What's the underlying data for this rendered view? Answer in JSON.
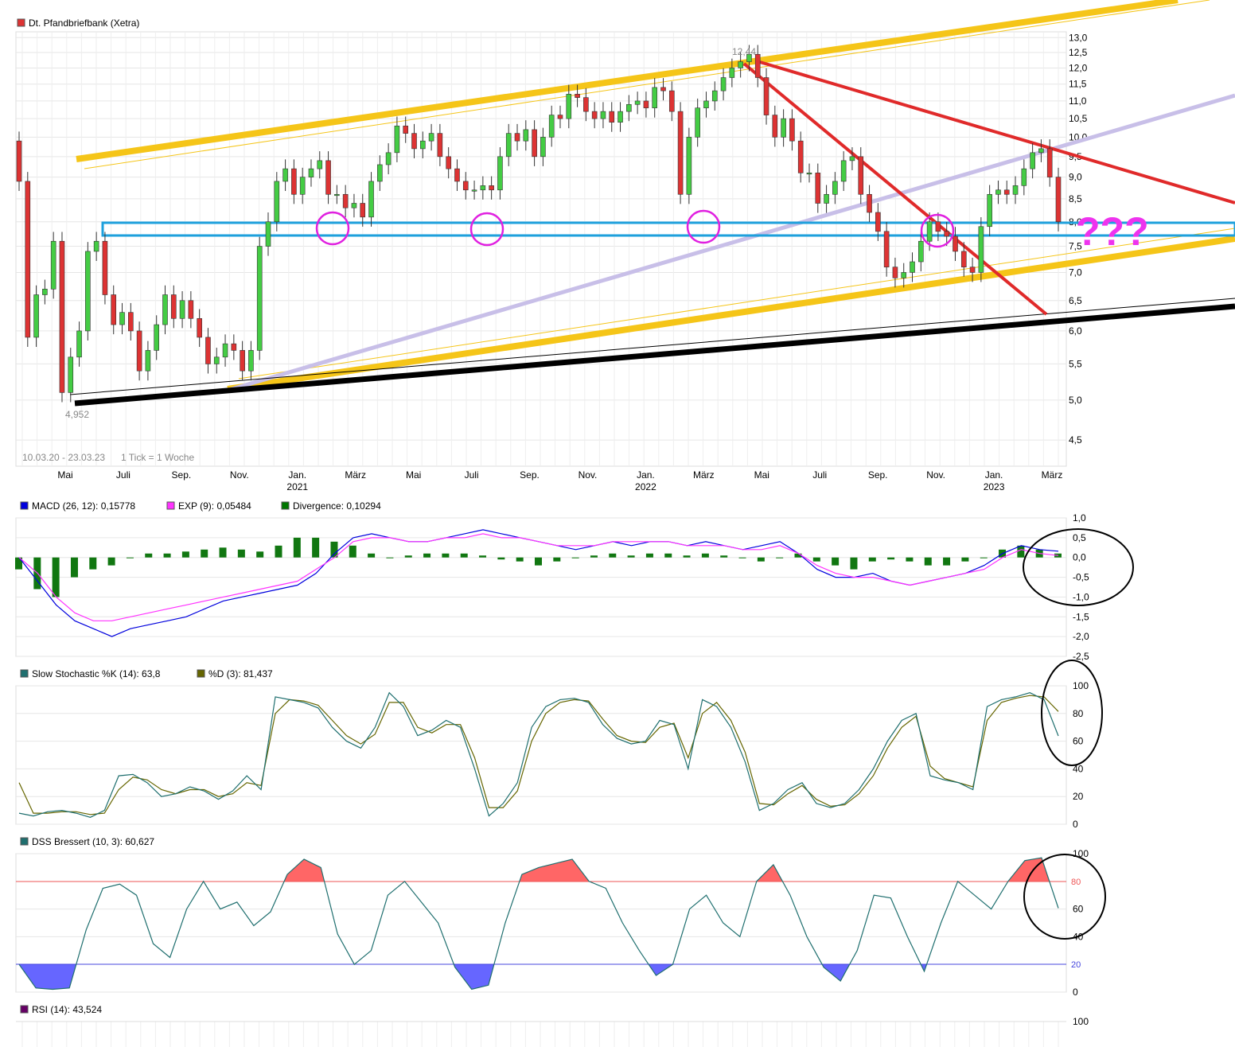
{
  "panels": {
    "price": {
      "legend": "Dt. Pfandbriefbank (Xetra)",
      "legend_color": "#dd3333",
      "range_note": "10.03.20 - 23.03.23",
      "tick_note": "1 Tick = 1 Woche",
      "high_label": "12,44",
      "low_label": "4,952",
      "question": "???"
    },
    "macd": {
      "legend": [
        {
          "text": "MACD (26, 12): 0,15778",
          "color": "#0000dd"
        },
        {
          "text": "EXP (9): 0,05484",
          "color": "#ff33ff"
        },
        {
          "text": "Divergence: 0,10294",
          "color": "#007700"
        }
      ]
    },
    "stoch": {
      "legend": [
        {
          "text": "Slow Stochastic %K (14): 63,8",
          "color": "#1f6f6f"
        },
        {
          "text": "%D (3): 81,437",
          "color": "#666600"
        }
      ]
    },
    "dss": {
      "legend": "DSS Bressert (10, 3): 60,627",
      "legend_color": "#1f6f6f",
      "level_high": "80",
      "level_low": "20"
    },
    "rsi": {
      "legend": "RSI (14): 43,524",
      "legend_color": "#660066",
      "top_tick": "100"
    }
  },
  "x_axis": {
    "months": [
      "Mai",
      "Juli",
      "Sep.",
      "Nov.",
      "Jan.",
      "März",
      "Mai",
      "Juli",
      "Sep.",
      "Nov.",
      "Jan.",
      "März",
      "Mai",
      "Juli",
      "Sep.",
      "Nov.",
      "Jan.",
      "März"
    ],
    "years": [
      "2021",
      "2022",
      "2023"
    ]
  },
  "chart_data": [
    {
      "type": "candlestick",
      "title": "Dt. Pfandbriefbank (Xetra)",
      "y_ticks": [
        "13,0",
        "12,5",
        "12,0",
        "11,5",
        "11,0",
        "10,5",
        "10,0",
        "9,5",
        "9,0",
        "8,5",
        "8,0",
        "7,5",
        "7,0",
        "6,5",
        "6,0",
        "5,5",
        "5,0",
        "4,5"
      ],
      "ylim": [
        4.2,
        13.2
      ],
      "y_scale": "log",
      "annotations": {
        "high": 12.44,
        "low": 4.952
      },
      "closes": [
        8.9,
        5.9,
        6.6,
        6.7,
        7.6,
        5.1,
        5.6,
        6.0,
        7.4,
        7.6,
        6.6,
        6.1,
        6.3,
        6.0,
        5.4,
        5.7,
        6.1,
        6.6,
        6.2,
        6.5,
        6.2,
        5.9,
        5.5,
        5.6,
        5.8,
        5.7,
        5.4,
        5.7,
        7.5,
        8.0,
        8.9,
        9.2,
        8.6,
        9.0,
        9.2,
        9.4,
        8.6,
        8.6,
        8.3,
        8.4,
        8.1,
        8.9,
        9.3,
        9.6,
        10.3,
        10.1,
        9.7,
        9.9,
        10.1,
        9.5,
        9.2,
        8.9,
        8.7,
        8.7,
        8.8,
        8.7,
        9.5,
        10.1,
        9.9,
        10.2,
        9.5,
        10.0,
        10.6,
        10.5,
        11.2,
        11.1,
        10.7,
        10.5,
        10.7,
        10.4,
        10.7,
        10.9,
        11.0,
        10.8,
        11.4,
        11.3,
        10.7,
        8.6,
        10.0,
        10.8,
        11.0,
        11.3,
        11.7,
        12.0,
        12.2,
        12.44,
        11.7,
        10.6,
        10.0,
        10.5,
        9.9,
        9.1,
        9.1,
        8.4,
        8.6,
        8.9,
        9.4,
        9.5,
        8.6,
        8.2,
        7.8,
        7.1,
        6.9,
        7.0,
        7.2,
        7.6,
        8.0,
        7.8,
        7.7,
        7.4,
        7.1,
        7.0,
        7.9,
        8.6,
        8.7,
        8.6,
        8.8,
        9.2,
        9.6,
        9.7,
        9.0,
        8.0
      ]
    },
    {
      "type": "line",
      "title": "MACD",
      "y_ticks": [
        "1,0",
        "0,5",
        "0,0",
        "-0,5",
        "-1,0",
        "-1,5",
        "-2,0",
        "-2,5"
      ],
      "ylim": [
        -2.5,
        1.0
      ],
      "series": [
        {
          "name": "MACD (26, 12)",
          "color": "#0000dd",
          "values": [
            0.0,
            -0.6,
            -1.2,
            -1.6,
            -1.8,
            -2.0,
            -1.8,
            -1.7,
            -1.6,
            -1.5,
            -1.3,
            -1.1,
            -1.0,
            -0.9,
            -0.8,
            -0.7,
            -0.4,
            0.1,
            0.5,
            0.6,
            0.5,
            0.4,
            0.4,
            0.5,
            0.6,
            0.7,
            0.6,
            0.5,
            0.4,
            0.3,
            0.2,
            0.3,
            0.4,
            0.3,
            0.4,
            0.4,
            0.3,
            0.4,
            0.3,
            0.2,
            0.3,
            0.4,
            0.1,
            -0.3,
            -0.5,
            -0.5,
            -0.4,
            -0.6,
            -0.7,
            -0.6,
            -0.5,
            -0.4,
            -0.2,
            0.1,
            0.3,
            0.2,
            0.16
          ]
        },
        {
          "name": "EXP (9)",
          "color": "#ff33ff",
          "values": [
            0.0,
            -0.4,
            -1.0,
            -1.4,
            -1.6,
            -1.6,
            -1.5,
            -1.4,
            -1.3,
            -1.2,
            -1.1,
            -1.0,
            -0.9,
            -0.8,
            -0.7,
            -0.6,
            -0.3,
            0.0,
            0.4,
            0.5,
            0.5,
            0.4,
            0.4,
            0.5,
            0.5,
            0.6,
            0.5,
            0.5,
            0.4,
            0.3,
            0.3,
            0.3,
            0.4,
            0.4,
            0.4,
            0.4,
            0.3,
            0.3,
            0.3,
            0.2,
            0.2,
            0.3,
            0.1,
            -0.2,
            -0.4,
            -0.5,
            -0.5,
            -0.6,
            -0.7,
            -0.6,
            -0.5,
            -0.4,
            -0.3,
            0.0,
            0.2,
            0.1,
            0.05
          ]
        }
      ],
      "divergence": [
        -0.3,
        -0.8,
        -1.0,
        -0.5,
        -0.3,
        -0.2,
        0.0,
        0.1,
        0.1,
        0.15,
        0.2,
        0.25,
        0.2,
        0.15,
        0.3,
        0.5,
        0.5,
        0.4,
        0.3,
        0.1,
        0.0,
        0.05,
        0.1,
        0.1,
        0.1,
        0.05,
        -0.05,
        -0.1,
        -0.2,
        -0.1,
        0.0,
        0.05,
        0.1,
        0.05,
        0.1,
        0.1,
        0.05,
        0.1,
        0.05,
        0.0,
        -0.1,
        0.0,
        0.1,
        -0.1,
        -0.2,
        -0.3,
        -0.1,
        -0.05,
        -0.1,
        -0.2,
        -0.2,
        -0.1,
        0.0,
        0.2,
        0.3,
        0.2,
        0.1
      ]
    },
    {
      "type": "line",
      "title": "Slow Stochastic",
      "y_ticks": [
        "100",
        "80",
        "60",
        "40",
        "20",
        "0"
      ],
      "ylim": [
        0,
        100
      ],
      "series": [
        {
          "name": "%K (14)",
          "color": "#1f6f6f",
          "values": [
            8,
            6,
            9,
            10,
            8,
            5,
            10,
            35,
            36,
            30,
            20,
            22,
            27,
            24,
            18,
            24,
            35,
            25,
            92,
            90,
            88,
            84,
            70,
            60,
            55,
            70,
            95,
            85,
            64,
            68,
            75,
            70,
            40,
            6,
            15,
            30,
            70,
            85,
            90,
            91,
            88,
            72,
            62,
            58,
            60,
            75,
            72,
            40,
            90,
            85,
            70,
            45,
            10,
            15,
            25,
            30,
            15,
            12,
            15,
            25,
            40,
            60,
            75,
            80,
            35,
            32,
            30,
            25,
            85,
            90,
            92,
            95,
            90,
            63.8
          ]
        },
        {
          "name": "%D (3)",
          "color": "#666600",
          "values": [
            30,
            8,
            8,
            9,
            9,
            7,
            8,
            25,
            34,
            32,
            25,
            22,
            25,
            25,
            20,
            22,
            30,
            28,
            80,
            90,
            89,
            86,
            75,
            64,
            58,
            65,
            88,
            88,
            70,
            66,
            72,
            72,
            48,
            12,
            12,
            24,
            60,
            80,
            88,
            90,
            89,
            76,
            64,
            60,
            59,
            70,
            73,
            48,
            80,
            88,
            75,
            52,
            15,
            14,
            22,
            28,
            18,
            13,
            14,
            22,
            35,
            55,
            70,
            78,
            42,
            33,
            30,
            27,
            75,
            88,
            91,
            93,
            92,
            81.437
          ]
        }
      ]
    },
    {
      "type": "area",
      "title": "DSS Bressert (10, 3)",
      "y_ticks": [
        "100",
        "80",
        "60",
        "40",
        "20",
        "0"
      ],
      "ylim": [
        0,
        100
      ],
      "series": [
        {
          "name": "DSS Bressert (10, 3)",
          "color": "#1f6f6f",
          "values": [
            20,
            3,
            2,
            3,
            45,
            75,
            78,
            70,
            35,
            25,
            60,
            80,
            60,
            65,
            48,
            58,
            85,
            96,
            90,
            42,
            20,
            30,
            70,
            80,
            65,
            50,
            18,
            2,
            5,
            50,
            85,
            90,
            93,
            96,
            80,
            75,
            50,
            30,
            12,
            20,
            60,
            70,
            50,
            40,
            80,
            92,
            70,
            40,
            18,
            8,
            30,
            70,
            68,
            40,
            15,
            50,
            80,
            70,
            60,
            80,
            95,
            97,
            60.627
          ]
        }
      ]
    }
  ]
}
